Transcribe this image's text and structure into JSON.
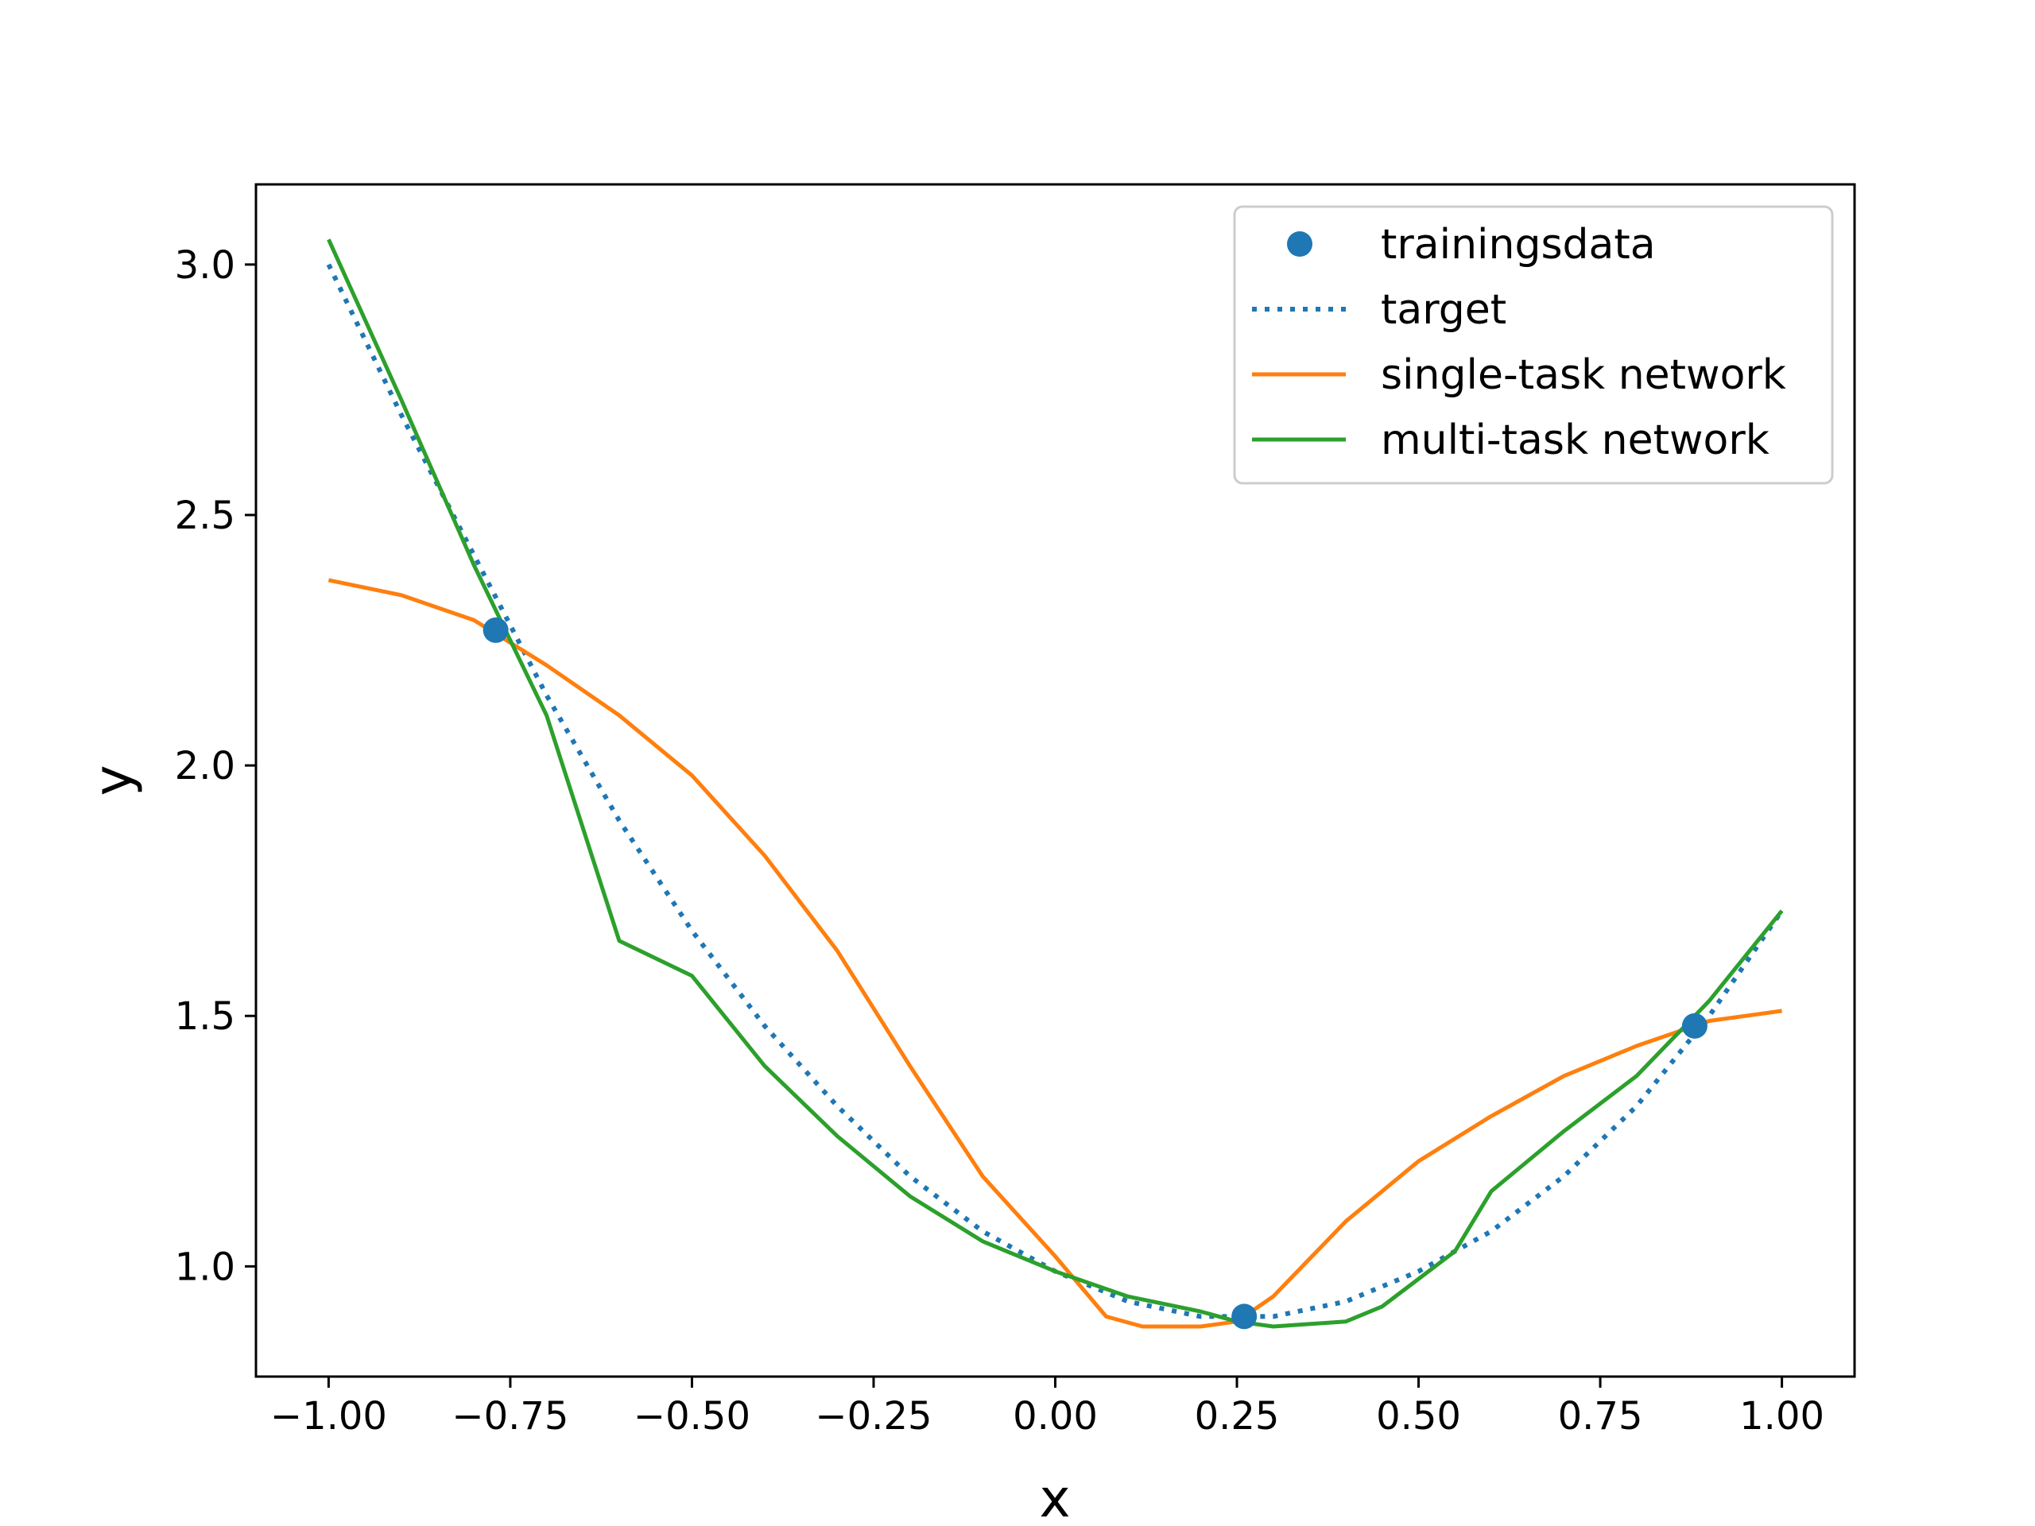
{
  "chart_data": {
    "type": "line",
    "xlabel": "x",
    "ylabel": "y",
    "xlim": [
      -1.1,
      1.1
    ],
    "ylim": [
      0.78,
      3.16
    ],
    "xticks": [
      -1.0,
      -0.75,
      -0.5,
      -0.25,
      0.0,
      0.25,
      0.5,
      0.75,
      1.0
    ],
    "xtick_labels": [
      "−1.00",
      "−0.75",
      "−0.50",
      "−0.25",
      "0.00",
      "0.25",
      "0.50",
      "0.75",
      "1.00"
    ],
    "yticks": [
      1.0,
      1.5,
      2.0,
      2.5,
      3.0
    ],
    "ytick_labels": [
      "1.0",
      "1.5",
      "2.0",
      "2.5",
      "3.0"
    ],
    "grid": false,
    "legend_position": "top-right",
    "series": [
      {
        "name": "trainingsdata",
        "kind": "scatter",
        "color": "#1f77b4",
        "points": [
          [
            -0.77,
            2.27
          ],
          [
            0.26,
            0.9
          ],
          [
            0.88,
            1.48
          ]
        ]
      },
      {
        "name": "target",
        "kind": "line",
        "style": "dotted",
        "color": "#1f77b4",
        "points": [
          [
            -1.0,
            3.0
          ],
          [
            -0.9,
            2.7
          ],
          [
            -0.8,
            2.42
          ],
          [
            -0.7,
            2.14
          ],
          [
            -0.6,
            1.89
          ],
          [
            -0.5,
            1.67
          ],
          [
            -0.4,
            1.48
          ],
          [
            -0.3,
            1.32
          ],
          [
            -0.2,
            1.18
          ],
          [
            -0.1,
            1.07
          ],
          [
            0.0,
            0.99
          ],
          [
            0.1,
            0.93
          ],
          [
            0.2,
            0.9
          ],
          [
            0.3,
            0.9
          ],
          [
            0.4,
            0.93
          ],
          [
            0.5,
            0.99
          ],
          [
            0.6,
            1.07
          ],
          [
            0.7,
            1.18
          ],
          [
            0.8,
            1.32
          ],
          [
            0.9,
            1.5
          ],
          [
            1.0,
            1.71
          ]
        ]
      },
      {
        "name": "single-task network",
        "kind": "line",
        "style": "solid",
        "color": "#ff7f0e",
        "points": [
          [
            -1.0,
            2.37
          ],
          [
            -0.9,
            2.34
          ],
          [
            -0.8,
            2.29
          ],
          [
            -0.7,
            2.2
          ],
          [
            -0.6,
            2.1
          ],
          [
            -0.5,
            1.98
          ],
          [
            -0.4,
            1.82
          ],
          [
            -0.3,
            1.63
          ],
          [
            -0.2,
            1.4
          ],
          [
            -0.1,
            1.18
          ],
          [
            0.0,
            1.02
          ],
          [
            0.07,
            0.9
          ],
          [
            0.12,
            0.88
          ],
          [
            0.2,
            0.88
          ],
          [
            0.25,
            0.89
          ],
          [
            0.3,
            0.94
          ],
          [
            0.4,
            1.09
          ],
          [
            0.5,
            1.21
          ],
          [
            0.6,
            1.3
          ],
          [
            0.7,
            1.38
          ],
          [
            0.8,
            1.44
          ],
          [
            0.9,
            1.49
          ],
          [
            1.0,
            1.51
          ]
        ]
      },
      {
        "name": "multi-task network",
        "kind": "line",
        "style": "solid",
        "color": "#2ca02c",
        "points": [
          [
            -1.0,
            3.05
          ],
          [
            -0.9,
            2.73
          ],
          [
            -0.8,
            2.4
          ],
          [
            -0.7,
            2.1
          ],
          [
            -0.6,
            1.65
          ],
          [
            -0.5,
            1.58
          ],
          [
            -0.4,
            1.4
          ],
          [
            -0.3,
            1.26
          ],
          [
            -0.2,
            1.14
          ],
          [
            -0.1,
            1.05
          ],
          [
            0.0,
            0.99
          ],
          [
            0.1,
            0.94
          ],
          [
            0.2,
            0.91
          ],
          [
            0.25,
            0.89
          ],
          [
            0.3,
            0.88
          ],
          [
            0.4,
            0.89
          ],
          [
            0.45,
            0.92
          ],
          [
            0.55,
            1.03
          ],
          [
            0.6,
            1.15
          ],
          [
            0.7,
            1.27
          ],
          [
            0.8,
            1.38
          ],
          [
            0.9,
            1.53
          ],
          [
            1.0,
            1.71
          ]
        ]
      }
    ]
  }
}
